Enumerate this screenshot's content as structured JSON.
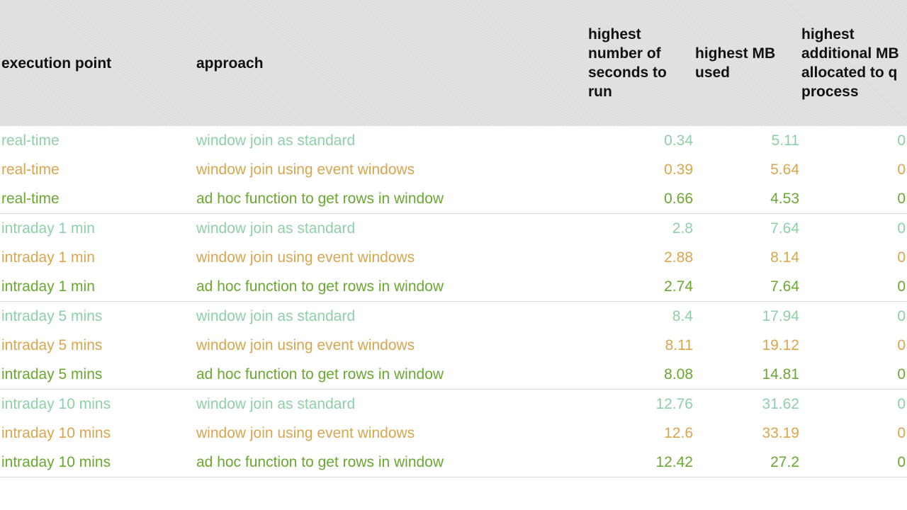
{
  "chart_data": {
    "type": "table",
    "columns": [
      "execution point",
      "approach",
      "highest number of seconds to run",
      "highest MB used",
      "highest additional MB allocated to q process"
    ],
    "header": {
      "execution_point": "execution point",
      "approach": "approach",
      "seconds": "highest number of seconds to run",
      "mb_used": "highest MB used",
      "additional_mb": "highest additional MB allocated to q process"
    },
    "colors": {
      "standard": "#8fcfa8",
      "event": "#d9a54e",
      "adhoc": "#6aa832"
    },
    "groups": [
      {
        "rows": [
          {
            "execution_point": "real-time",
            "approach": "window join as standard",
            "seconds": "0.34",
            "mb_used": "5.11",
            "additional_mb": "0",
            "style": "standard"
          },
          {
            "execution_point": "real-time",
            "approach": "window join using event windows",
            "seconds": "0.39",
            "mb_used": "5.64",
            "additional_mb": "0",
            "style": "event"
          },
          {
            "execution_point": "real-time",
            "approach": "ad hoc function to get rows in window",
            "seconds": "0.66",
            "mb_used": "4.53",
            "additional_mb": "0",
            "style": "adhoc"
          }
        ]
      },
      {
        "rows": [
          {
            "execution_point": "intraday 1 min",
            "approach": "window join as standard",
            "seconds": "2.8",
            "mb_used": "7.64",
            "additional_mb": "0",
            "style": "standard"
          },
          {
            "execution_point": "intraday 1 min",
            "approach": "window join using event windows",
            "seconds": "2.88",
            "mb_used": "8.14",
            "additional_mb": "0",
            "style": "event"
          },
          {
            "execution_point": "intraday 1 min",
            "approach": "ad hoc function to get rows in window",
            "seconds": "2.74",
            "mb_used": "7.64",
            "additional_mb": "0",
            "style": "adhoc"
          }
        ]
      },
      {
        "rows": [
          {
            "execution_point": "intraday 5 mins",
            "approach": "window join as standard",
            "seconds": "8.4",
            "mb_used": "17.94",
            "additional_mb": "0",
            "style": "standard"
          },
          {
            "execution_point": "intraday 5 mins",
            "approach": "window join using event windows",
            "seconds": "8.11",
            "mb_used": "19.12",
            "additional_mb": "0",
            "style": "event"
          },
          {
            "execution_point": "intraday 5 mins",
            "approach": "ad hoc function to get rows in window",
            "seconds": "8.08",
            "mb_used": "14.81",
            "additional_mb": "0",
            "style": "adhoc"
          }
        ]
      },
      {
        "rows": [
          {
            "execution_point": "intraday 10 mins",
            "approach": "window join as standard",
            "seconds": "12.76",
            "mb_used": "31.62",
            "additional_mb": "0",
            "style": "standard"
          },
          {
            "execution_point": "intraday 10 mins",
            "approach": "window join using event windows",
            "seconds": "12.6",
            "mb_used": "33.19",
            "additional_mb": "0",
            "style": "event"
          },
          {
            "execution_point": "intraday 10 mins",
            "approach": "ad hoc function to get rows in window",
            "seconds": "12.42",
            "mb_used": "27.2",
            "additional_mb": "0",
            "style": "adhoc"
          }
        ]
      }
    ]
  }
}
